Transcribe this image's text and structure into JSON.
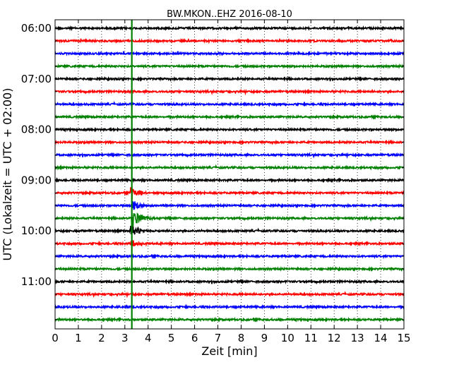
{
  "chart_data": {
    "type": "line",
    "title": "BW.MKON..EHZ 2016-08-10",
    "xlabel": "Zeit  [min]",
    "ylabel": "UTC (Lokalzeit = UTC + 02:00)",
    "xlim": [
      0,
      15
    ],
    "x_ticks": [
      "0",
      "1",
      "2",
      "3",
      "4",
      "5",
      "6",
      "7",
      "8",
      "9",
      "10",
      "11",
      "12",
      "13",
      "14",
      "15"
    ],
    "y_tick_labels": [
      "06:00",
      "07:00",
      "08:00",
      "09:00",
      "10:00",
      "11:00"
    ],
    "trace_start_times": [
      "06:00",
      "06:15",
      "06:30",
      "06:45",
      "07:00",
      "07:15",
      "07:30",
      "07:45",
      "08:00",
      "08:15",
      "08:30",
      "08:45",
      "09:00",
      "09:15",
      "09:30",
      "09:45",
      "10:00",
      "10:15",
      "10:30",
      "10:45",
      "11:00",
      "11:15",
      "11:30",
      "11:45"
    ],
    "trace_colors": [
      "#000000",
      "#ff0000",
      "#0000ff",
      "#008000"
    ],
    "grid": "vertical dotted",
    "marker": {
      "x_min": 3.3,
      "color": "#008000"
    },
    "events": [
      {
        "trace": 13,
        "x_min": 3.3,
        "amplitude": "large"
      },
      {
        "trace": 14,
        "x_min": 3.35,
        "amplitude": "large"
      },
      {
        "trace": 15,
        "x_min": 3.35,
        "amplitude": "very large"
      },
      {
        "trace": 16,
        "x_min": 3.3,
        "amplitude": "large"
      },
      {
        "trace": 17,
        "x_min": 3.3,
        "amplitude": "medium"
      }
    ]
  }
}
